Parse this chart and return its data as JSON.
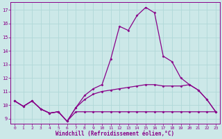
{
  "xlabel": "Windchill (Refroidissement éolien,°C)",
  "background_color": "#cce8e8",
  "grid_color": "#aacccc",
  "line_color": "#880088",
  "x_values": [
    0,
    1,
    2,
    3,
    4,
    5,
    6,
    7,
    8,
    9,
    10,
    11,
    12,
    13,
    14,
    15,
    16,
    17,
    18,
    19,
    20,
    21,
    22,
    23
  ],
  "yticks": [
    9,
    10,
    11,
    12,
    13,
    14,
    15,
    16,
    17
  ],
  "series_top": [
    10.3,
    9.9,
    10.3,
    9.7,
    9.4,
    9.5,
    8.8,
    9.8,
    10.7,
    11.2,
    11.5,
    13.4,
    15.8,
    15.5,
    16.6,
    17.2,
    16.8,
    13.6,
    13.2,
    12.0,
    11.5,
    11.1,
    10.4,
    9.5
  ],
  "series_mid": [
    10.3,
    9.9,
    10.3,
    9.7,
    9.4,
    9.5,
    8.8,
    9.8,
    10.4,
    10.8,
    11.0,
    11.1,
    11.2,
    11.3,
    11.4,
    11.5,
    11.5,
    11.4,
    11.4,
    11.4,
    11.5,
    11.1,
    10.4,
    9.5
  ],
  "series_bottom": [
    10.3,
    9.9,
    10.3,
    9.7,
    9.4,
    9.5,
    8.8,
    9.5,
    9.5,
    9.5,
    9.5,
    9.5,
    9.5,
    9.5,
    9.5,
    9.5,
    9.5,
    9.5,
    9.5,
    9.5,
    9.5,
    9.5,
    9.5,
    9.5
  ]
}
